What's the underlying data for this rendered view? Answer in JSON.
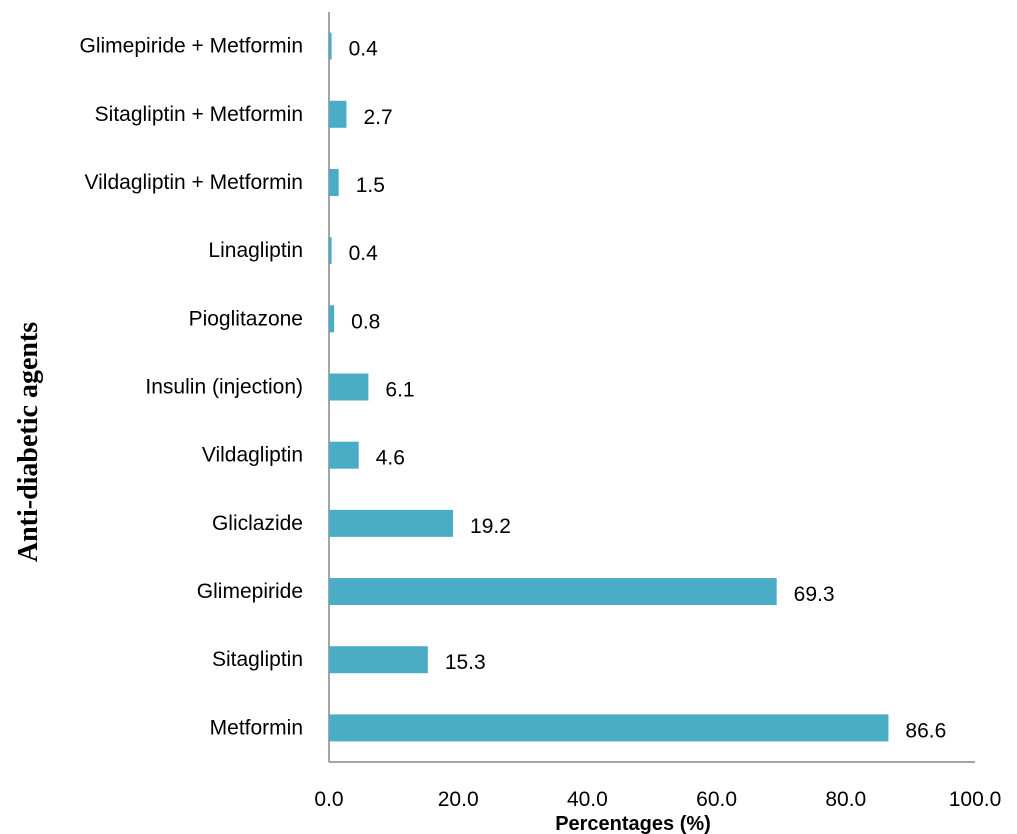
{
  "chart_data": {
    "type": "bar",
    "orientation": "horizontal",
    "categories": [
      "Metformin",
      "Sitagliptin",
      "Glimepiride",
      "Gliclazide",
      "Vildagliptin",
      "Insulin (injection)",
      "Pioglitazone",
      "Linagliptin",
      "Vildagliptin + Metformin",
      "Sitagliptin + Metformin",
      "Glimepiride + Metformin"
    ],
    "values": [
      86.6,
      15.3,
      69.3,
      19.2,
      4.6,
      6.1,
      0.8,
      0.4,
      1.5,
      2.7,
      0.4
    ],
    "value_labels": [
      "86.6",
      "15.3",
      "69.3",
      "19.2",
      "4.6",
      "6.1",
      "0.8",
      "0.4",
      "1.5",
      "2.7",
      "0.4"
    ],
    "xlabel": "Percentages (%)",
    "ylabel": "Anti-diabetic agents",
    "xlim": [
      0,
      100
    ],
    "xticks": [
      "0.0",
      "20.0",
      "40.0",
      "60.0",
      "80.0",
      "100.0"
    ],
    "grid": false,
    "legend": "none",
    "bar_color": "#4bacc6",
    "axis_color": "#868686"
  }
}
